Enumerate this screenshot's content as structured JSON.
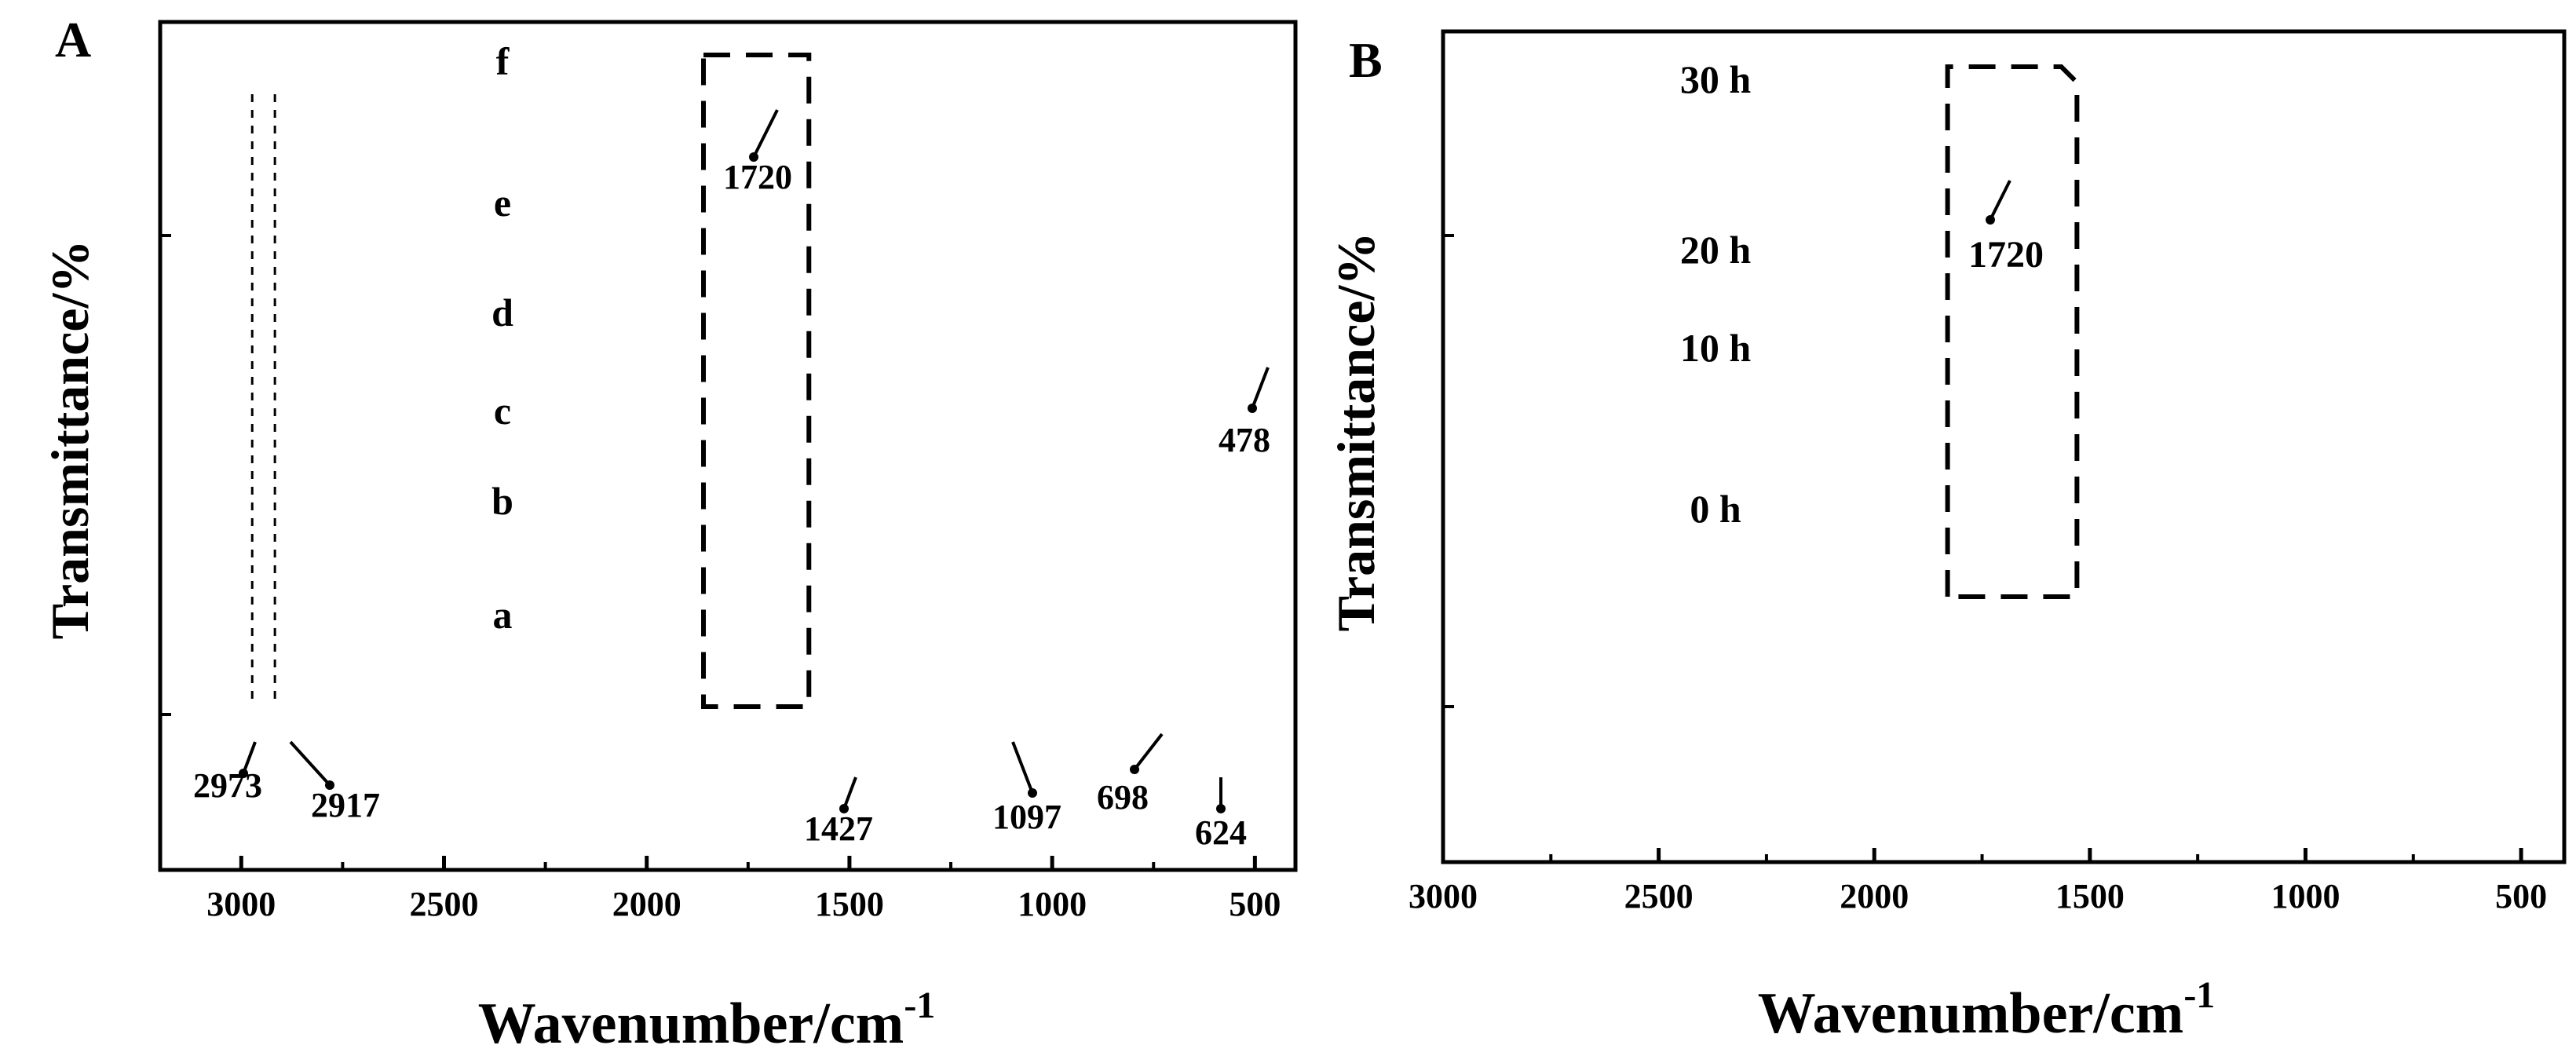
{
  "chart_data": [
    {
      "type": "line",
      "panel": "A",
      "xlabel": "Wavenumber/cm",
      "xlabel_sup": "-1",
      "ylabel": "Transmittance/%",
      "xlim": [
        3200,
        400
      ],
      "x_reversed": true,
      "x_ticks": [
        3000,
        2500,
        2000,
        1500,
        1000,
        500
      ],
      "x_tick_labels": [
        "3000",
        "2500",
        "2000",
        "1500",
        "1000",
        "500"
      ],
      "y_ticks_labeled": false,
      "grid": false,
      "series": [
        {
          "name": "a",
          "color": "#000000",
          "offset": 0,
          "profile": "black_a"
        },
        {
          "name": "b",
          "color": "#ff0000",
          "offset": 1,
          "profile": "red_b"
        },
        {
          "name": "c",
          "color": "#0000ff",
          "offset": 2,
          "profile": "blue_c"
        },
        {
          "name": "d",
          "color": "#ff00ff",
          "offset": 3,
          "profile": "magenta_d"
        },
        {
          "name": "e",
          "color": "#008000",
          "offset": 4,
          "profile": "green_e"
        },
        {
          "name": "f",
          "color": "#000080",
          "offset": 5,
          "profile": "navy_f"
        }
      ],
      "annotations": [
        {
          "text": "2973",
          "x": 2973
        },
        {
          "text": "2917",
          "x": 2917
        },
        {
          "text": "1427",
          "x": 1427
        },
        {
          "text": "1097",
          "x": 1097
        },
        {
          "text": "698",
          "x": 698
        },
        {
          "text": "624",
          "x": 624
        },
        {
          "text": "478",
          "x": 478
        },
        {
          "text": "1720",
          "x": 1720
        }
      ],
      "highlight_box": {
        "x_from": 1860,
        "x_to": 1600
      },
      "guide_lines_x": [
        2973,
        2917
      ]
    },
    {
      "type": "line",
      "panel": "B",
      "xlabel": "Wavenumber/cm",
      "xlabel_sup": "-1",
      "ylabel": "Transmittance/%",
      "xlim": [
        3000,
        400
      ],
      "x_reversed": true,
      "x_ticks": [
        3000,
        2500,
        2000,
        1500,
        1000,
        500
      ],
      "x_tick_labels": [
        "3000",
        "2500",
        "2000",
        "1500",
        "1000",
        "500"
      ],
      "y_ticks_labeled": false,
      "grid": false,
      "series": [
        {
          "name": "0 h",
          "color": "#000000",
          "profile": "black_0"
        },
        {
          "name": "10 h",
          "color": "#ff0000",
          "profile": "red_10"
        },
        {
          "name": "20 h",
          "color": "#0000ff",
          "profile": "blue_20"
        },
        {
          "name": "30 h",
          "color": "#ff00ff",
          "profile": "magenta_30"
        }
      ],
      "annotations": [
        {
          "text": "1720",
          "x": 1720
        }
      ],
      "highlight_box": {
        "x_from": 1830,
        "x_to": 1530
      }
    }
  ]
}
